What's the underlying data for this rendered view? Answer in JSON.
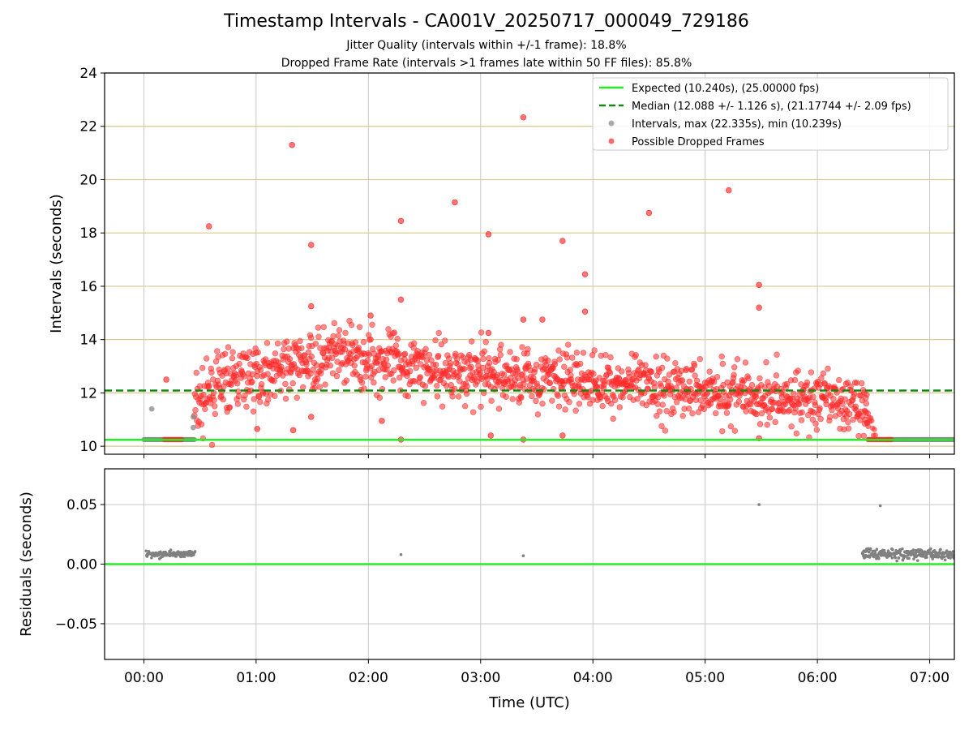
{
  "figure": {
    "title": "Timestamp Intervals - CA001V_20250717_000049_729186",
    "subtitle_jitter": "Jitter Quality (intervals within +/-1 frame): 18.8%",
    "subtitle_dropped": "Dropped Frame Rate (intervals >1 frames late within 50 FF files): 85.8%"
  },
  "colors": {
    "expected": "#22ee22",
    "median": "#118811",
    "intervals": "#888888",
    "dropped": "#ff2a2a",
    "hgrid_top": "#d8c88a",
    "grid": "#c8c8c8",
    "residuals": "#808080"
  },
  "chart_data": [
    {
      "type": "scatter",
      "panel": "top",
      "ylabel": "Intervals (seconds)",
      "ylim": [
        9.7,
        24
      ],
      "yticks": [
        10,
        12,
        14,
        16,
        18,
        20,
        22,
        24
      ],
      "xlim_hours": [
        -0.35,
        7.22
      ],
      "xticks_hours": [
        0,
        1,
        2,
        3,
        4,
        5,
        6,
        7
      ],
      "xtick_labels": [
        "00:00",
        "01:00",
        "02:00",
        "03:00",
        "04:00",
        "05:00",
        "06:00",
        "07:00"
      ],
      "grid": "on",
      "legend_position": "top-right",
      "expected_line": {
        "value": 10.24,
        "label": "Expected (10.240s), (25.00000 fps)"
      },
      "median_line": {
        "value": 12.088,
        "label": "Median (12.088 +/- 1.126 s), (21.17744 +/- 2.09 fps)"
      },
      "series": [
        {
          "name": "Intervals, max (22.335s), min (10.239s)",
          "points": [
            [
              0.07,
              11.4
            ],
            [
              0.44,
              11.1
            ],
            [
              0.44,
              10.7
            ]
          ]
        },
        {
          "name": "Possible Dropped Frames",
          "points": [
            [
              0.2,
              12.5
            ],
            [
              0.58,
              18.25
            ],
            [
              1.32,
              21.3
            ],
            [
              1.49,
              17.55
            ],
            [
              1.49,
              15.25
            ],
            [
              1.49,
              11.1
            ],
            [
              1.33,
              10.6
            ],
            [
              1.01,
              10.65
            ],
            [
              2.02,
              14.9
            ],
            [
              2.29,
              18.45
            ],
            [
              2.29,
              15.5
            ],
            [
              2.29,
              10.25
            ],
            [
              2.12,
              10.95
            ],
            [
              2.77,
              19.15
            ],
            [
              3.07,
              17.95
            ],
            [
              3.07,
              14.25
            ],
            [
              3.09,
              10.4
            ],
            [
              3.38,
              22.335
            ],
            [
              3.38,
              14.75
            ],
            [
              3.38,
              10.25
            ],
            [
              3.55,
              14.75
            ],
            [
              3.73,
              17.7
            ],
            [
              3.73,
              10.4
            ],
            [
              3.93,
              16.45
            ],
            [
              3.93,
              15.05
            ],
            [
              4.5,
              18.75
            ],
            [
              5.21,
              19.6
            ],
            [
              5.48,
              16.05
            ],
            [
              5.48,
              15.2
            ],
            [
              5.48,
              10.3
            ]
          ]
        }
      ]
    },
    {
      "type": "scatter",
      "panel": "bottom",
      "xlabel": "Time (UTC)",
      "ylabel": "Residuals (seconds)",
      "ylim": [
        -0.08,
        0.08
      ],
      "yticks": [
        -0.05,
        0.0,
        0.05
      ],
      "ytick_labels": [
        "−0.05",
        "0.00",
        "0.05"
      ],
      "zero_line": 0.0,
      "series": [
        {
          "name": "",
          "points": [
            [
              2.29,
              0.008
            ],
            [
              3.38,
              0.007
            ],
            [
              5.48,
              0.05
            ],
            [
              6.56,
              0.049
            ]
          ]
        }
      ]
    }
  ]
}
